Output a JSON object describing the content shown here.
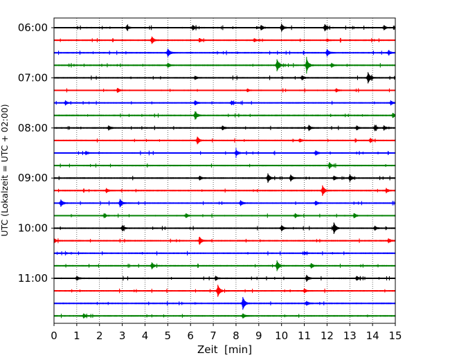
{
  "chart_data": {
    "type": "line",
    "chart_kind": "helicorder",
    "xlabel": "Zeit  [min]",
    "ylabel": "UTC (Lokalzeit = UTC + 02:00)",
    "xlim": [
      0,
      15
    ],
    "x_ticks": [
      0,
      1,
      2,
      3,
      4,
      5,
      6,
      7,
      8,
      9,
      10,
      11,
      12,
      13,
      14,
      15
    ],
    "x_tick_labels": [
      "0",
      "1",
      "2",
      "3",
      "4",
      "5",
      "6",
      "7",
      "8",
      "9",
      "10",
      "11",
      "12",
      "13",
      "14",
      "15"
    ],
    "y_tick_labels": [
      "06:00",
      "07:00",
      "08:00",
      "09:00",
      "10:00",
      "11:00"
    ],
    "grid": "vertical dotted at each minute",
    "trace_interval_minutes": 15,
    "trace_colors": [
      "#000000",
      "#ff0000",
      "#0000ff",
      "#008000"
    ],
    "traces": [
      {
        "start": "06:00",
        "color": "#000000",
        "events": [
          [
            3.2,
            0.3
          ],
          [
            6.1,
            0.35
          ],
          [
            9.1,
            0.35
          ],
          [
            10.0,
            0.55
          ],
          [
            11.9,
            0.5
          ],
          [
            14.5,
            0.3
          ]
        ]
      },
      {
        "start": "06:15",
        "color": "#ff0000",
        "events": [
          [
            4.3,
            0.5
          ],
          [
            6.4,
            0.25
          ],
          [
            8.8,
            0.2
          ],
          [
            12.0,
            0.2
          ]
        ]
      },
      {
        "start": "06:30",
        "color": "#0000ff",
        "events": [
          [
            5.0,
            0.6
          ],
          [
            12.0,
            0.5
          ],
          [
            14.7,
            0.3
          ]
        ]
      },
      {
        "start": "06:45",
        "color": "#008000",
        "events": [
          [
            5.0,
            0.3
          ],
          [
            9.8,
            0.9
          ],
          [
            11.1,
            1.0
          ],
          [
            12.2,
            0.3
          ]
        ]
      },
      {
        "start": "07:00",
        "color": "#000000",
        "events": [
          [
            6.2,
            0.25
          ],
          [
            10.9,
            0.3
          ],
          [
            13.8,
            0.8
          ]
        ]
      },
      {
        "start": "07:15",
        "color": "#ff0000",
        "events": [
          [
            2.8,
            0.3
          ],
          [
            8.5,
            0.2
          ],
          [
            12.4,
            0.25
          ]
        ]
      },
      {
        "start": "07:30",
        "color": "#0000ff",
        "events": [
          [
            0.5,
            0.3
          ],
          [
            6.2,
            0.3
          ],
          [
            7.8,
            0.3
          ],
          [
            14.8,
            0.3
          ]
        ]
      },
      {
        "start": "07:45",
        "color": "#008000",
        "events": [
          [
            6.2,
            0.6
          ],
          [
            14.9,
            0.3
          ]
        ]
      },
      {
        "start": "08:00",
        "color": "#000000",
        "events": [
          [
            2.4,
            0.3
          ],
          [
            7.4,
            0.3
          ],
          [
            11.2,
            0.4
          ],
          [
            13.3,
            0.3
          ],
          [
            14.1,
            0.4
          ],
          [
            14.5,
            0.3
          ]
        ]
      },
      {
        "start": "08:15",
        "color": "#ff0000",
        "events": [
          [
            6.3,
            0.55
          ],
          [
            10.8,
            0.25
          ],
          [
            13.9,
            0.3
          ]
        ]
      },
      {
        "start": "08:30",
        "color": "#0000ff",
        "events": [
          [
            1.4,
            0.25
          ],
          [
            8.0,
            0.45
          ],
          [
            11.5,
            0.3
          ]
        ]
      },
      {
        "start": "08:45",
        "color": "#008000",
        "events": [
          [
            12.1,
            0.45
          ]
        ]
      },
      {
        "start": "09:00",
        "color": "#000000",
        "events": [
          [
            6.4,
            0.3
          ],
          [
            9.4,
            0.65
          ],
          [
            10.4,
            0.45
          ],
          [
            12.3,
            0.3
          ],
          [
            13.0,
            0.5
          ]
        ]
      },
      {
        "start": "09:15",
        "color": "#ff0000",
        "events": [
          [
            2.3,
            0.3
          ],
          [
            11.8,
            0.75
          ],
          [
            14.6,
            0.3
          ]
        ]
      },
      {
        "start": "09:30",
        "color": "#0000ff",
        "events": [
          [
            0.3,
            0.5
          ],
          [
            2.9,
            0.6
          ],
          [
            8.2,
            0.35
          ],
          [
            11.5,
            0.3
          ]
        ]
      },
      {
        "start": "09:45",
        "color": "#008000",
        "events": [
          [
            2.2,
            0.3
          ],
          [
            5.8,
            0.3
          ],
          [
            10.6,
            0.3
          ],
          [
            13.2,
            0.3
          ]
        ]
      },
      {
        "start": "10:00",
        "color": "#000000",
        "events": [
          [
            3.0,
            0.4
          ],
          [
            10.0,
            0.4
          ],
          [
            12.3,
            0.85
          ],
          [
            14.1,
            0.3
          ]
        ]
      },
      {
        "start": "10:15",
        "color": "#ff0000",
        "events": [
          [
            0.0,
            0.35
          ],
          [
            6.4,
            0.55
          ],
          [
            14.7,
            0.3
          ]
        ]
      },
      {
        "start": "10:30",
        "color": "#0000ff",
        "events": [
          [
            11.0,
            0.2
          ]
        ]
      },
      {
        "start": "10:45",
        "color": "#008000",
        "events": [
          [
            4.3,
            0.45
          ],
          [
            9.8,
            0.75
          ],
          [
            11.3,
            0.35
          ]
        ]
      },
      {
        "start": "11:00",
        "color": "#000000",
        "events": [
          [
            1.0,
            0.3
          ],
          [
            7.1,
            0.3
          ],
          [
            11.1,
            0.45
          ],
          [
            13.3,
            0.3
          ]
        ]
      },
      {
        "start": "11:15",
        "color": "#ff0000",
        "events": [
          [
            7.2,
            0.9
          ],
          [
            11.0,
            0.3
          ]
        ]
      },
      {
        "start": "11:30",
        "color": "#0000ff",
        "events": [
          [
            8.3,
            0.95
          ],
          [
            11.1,
            0.3
          ]
        ]
      },
      {
        "start": "11:45",
        "color": "#008000",
        "events": [
          [
            1.3,
            0.3
          ],
          [
            8.3,
            0.3
          ]
        ]
      }
    ]
  }
}
